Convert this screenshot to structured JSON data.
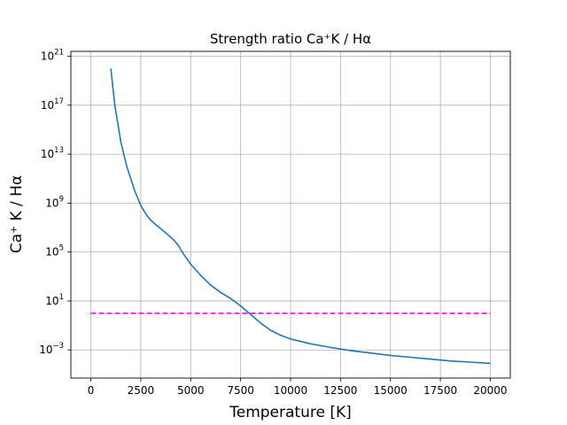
{
  "chart_data": {
    "type": "line",
    "title": "Strength ratio Ca⁺K / Hα",
    "xlabel": "Temperature [K]",
    "ylabel": "Ca⁺ K / Hα",
    "xlim": [
      -1000,
      21000
    ],
    "ylim_log10": [
      -5.3,
      21.4
    ],
    "y_scale": "log",
    "grid": true,
    "legend": "none",
    "x_ticks": [
      0,
      2500,
      5000,
      7500,
      10000,
      12500,
      15000,
      17500,
      20000
    ],
    "x_tick_labels": [
      "0",
      "2500",
      "5000",
      "7500",
      "10000",
      "12500",
      "15000",
      "17500",
      "20000"
    ],
    "y_ticks_log10": [
      -3,
      1,
      5,
      9,
      13,
      17,
      21
    ],
    "y_tick_labels": [
      {
        "base": "10",
        "exp": "−3"
      },
      {
        "base": "10",
        "exp": "1"
      },
      {
        "base": "10",
        "exp": "5"
      },
      {
        "base": "10",
        "exp": "9"
      },
      {
        "base": "10",
        "exp": "13"
      },
      {
        "base": "10",
        "exp": "17"
      },
      {
        "base": "10",
        "exp": "21"
      }
    ],
    "series": [
      {
        "color": "#1f77b4",
        "style": "solid",
        "x": [
          1000,
          1200,
          1500,
          1800,
          2000,
          2200,
          2500,
          2800,
          3000,
          3200,
          3500,
          3800,
          4000,
          4200,
          4400,
          4500,
          4700,
          5000,
          5500,
          6000,
          6500,
          7000,
          7500,
          8000,
          8500,
          9000,
          9500,
          10000,
          11000,
          12000,
          13000,
          14000,
          15000,
          16000,
          17000,
          18000,
          19000,
          20000
        ],
        "y_log10": [
          20.0,
          17.0,
          14.0,
          12.0,
          11.0,
          10.0,
          8.8,
          8.0,
          7.6,
          7.3,
          6.9,
          6.5,
          6.2,
          5.9,
          5.5,
          5.2,
          4.7,
          4.0,
          3.1,
          2.3,
          1.7,
          1.2,
          0.6,
          -0.1,
          -0.8,
          -1.4,
          -1.8,
          -2.1,
          -2.5,
          -2.8,
          -3.05,
          -3.25,
          -3.45,
          -3.6,
          -3.75,
          -3.9,
          -4.0,
          -4.1
        ]
      },
      {
        "color": "#ff00ff",
        "style": "dashed",
        "x": [
          0,
          20000
        ],
        "y_log10": [
          0.0,
          0.0
        ]
      }
    ]
  }
}
